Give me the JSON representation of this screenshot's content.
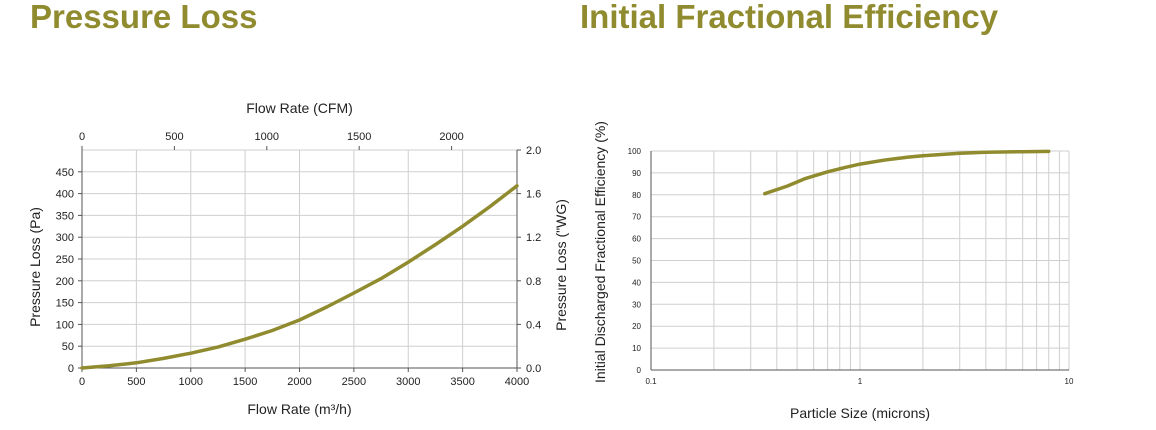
{
  "titles": {
    "left": "Pressure Loss",
    "right": "Initial Fractional Efficiency"
  },
  "colors": {
    "title": "#8f8b2e",
    "curve": "#8f8b2e",
    "grid": "#cfcfcf",
    "axis": "#555555"
  },
  "chart_data": [
    {
      "type": "line",
      "title": "Pressure Loss",
      "xlabel": "Flow Rate (m³/h)",
      "x_top_label": "Flow Rate (CFM)",
      "ylabel": "Pressure Loss (Pa)",
      "y_right_label": "Pressure Loss (\"WG)",
      "xlim": [
        0,
        4000
      ],
      "ylim": [
        0,
        500
      ],
      "x_ticks": [
        "0",
        "500",
        "1000",
        "1500",
        "2000",
        "2500",
        "3000",
        "3500",
        "4000"
      ],
      "y_ticks": [
        "0",
        "50",
        "100",
        "150",
        "200",
        "250",
        "300",
        "350",
        "400",
        "450"
      ],
      "x_top_ticks": [
        "0",
        "500",
        "1000",
        "1500",
        "2000"
      ],
      "x_top_lim": [
        0,
        2354
      ],
      "y_right_ticks": [
        "0.0",
        "0.4",
        "0.8",
        "1.2",
        "1.6",
        "2.0"
      ],
      "y_right_lim": [
        0,
        2.0
      ],
      "grid": true,
      "series": [
        {
          "x": [
            0,
            250,
            500,
            750,
            1000,
            1250,
            1500,
            1750,
            2000,
            2250,
            2500,
            2750,
            3000,
            3250,
            3500,
            3750,
            4000
          ],
          "y": [
            0,
            5,
            12,
            22,
            34,
            48,
            66,
            86,
            110,
            140,
            172,
            205,
            243,
            283,
            325,
            370,
            418
          ]
        }
      ]
    },
    {
      "type": "line",
      "title": "Initial Fractional Efficiency",
      "xlabel": "Particle Size (microns)",
      "ylabel": "Initial Discharged Fractional Efficiency (%)",
      "xscale": "log",
      "xlim": [
        0.1,
        10
      ],
      "ylim": [
        0,
        100
      ],
      "x_ticks": [
        "0.1",
        "1",
        "10"
      ],
      "y_ticks": [
        "0",
        "10",
        "20",
        "30",
        "40",
        "50",
        "60",
        "70",
        "80",
        "90",
        "100"
      ],
      "grid": true,
      "series": [
        {
          "x": [
            0.35,
            0.45,
            0.55,
            0.7,
            0.85,
            1.0,
            1.3,
            1.7,
            2.0,
            3.0,
            4.0,
            6.0,
            8.0
          ],
          "y": [
            80.5,
            84,
            87.5,
            90.5,
            92.5,
            94,
            95.8,
            97.2,
            97.8,
            99.0,
            99.4,
            99.7,
            99.8
          ]
        }
      ]
    }
  ]
}
